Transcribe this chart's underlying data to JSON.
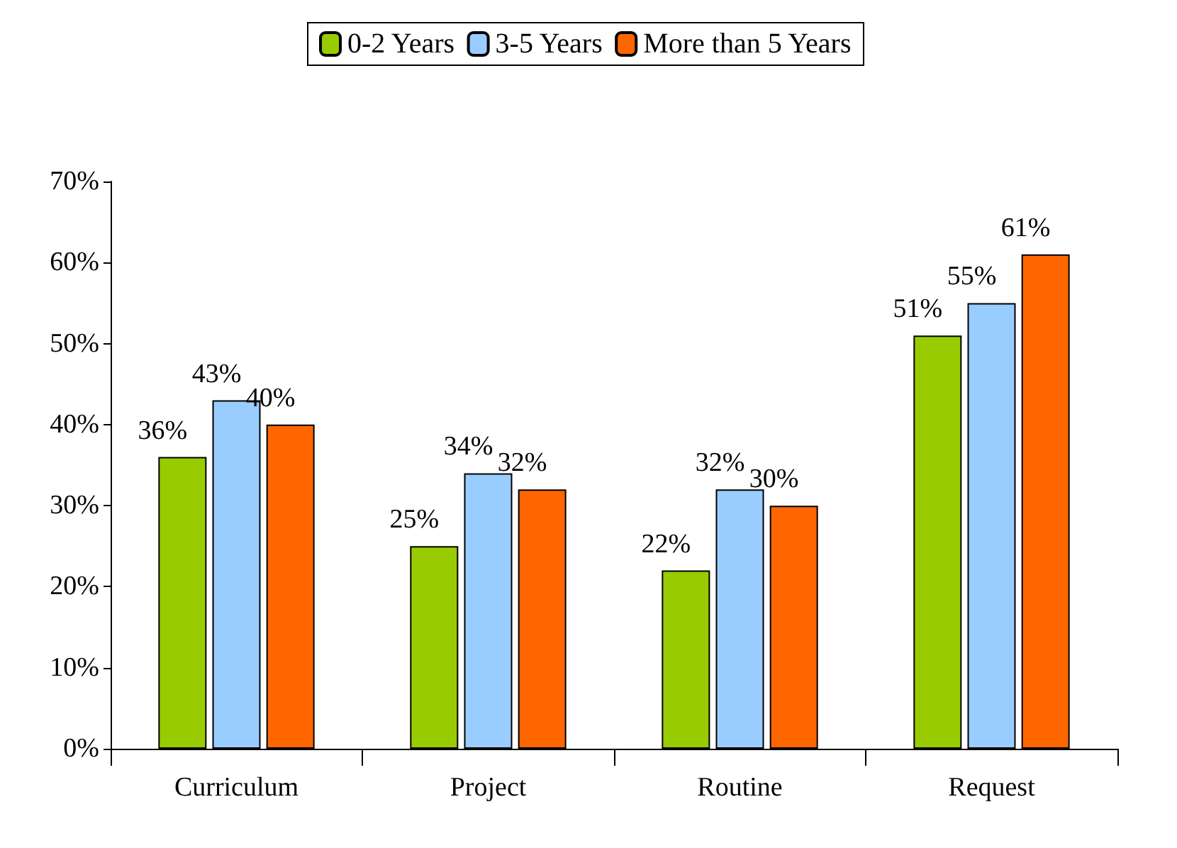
{
  "chart_data": {
    "type": "bar",
    "categories": [
      "Curriculum",
      "Project",
      "Routine",
      "Request"
    ],
    "series": [
      {
        "name": "0-2 Years",
        "color": "#99cc00",
        "values": [
          36,
          25,
          22,
          51
        ],
        "value_labels": [
          "36%",
          "25%",
          "22%",
          "51%"
        ]
      },
      {
        "name": "3-5 Years",
        "color": "#99ccff",
        "values": [
          43,
          34,
          32,
          55
        ],
        "value_labels": [
          "43%",
          "34%",
          "32%",
          "55%"
        ]
      },
      {
        "name": "More than 5 Years",
        "color": "#ff6600",
        "values": [
          40,
          32,
          30,
          61
        ],
        "value_labels": [
          "40%",
          "32%",
          "30%",
          "61%"
        ]
      }
    ],
    "ylim": [
      0,
      70
    ],
    "yticks": [
      {
        "value": 0,
        "label": "0%"
      },
      {
        "value": 10,
        "label": "10%"
      },
      {
        "value": 20,
        "label": "20%"
      },
      {
        "value": 30,
        "label": "30%"
      },
      {
        "value": 40,
        "label": "40%"
      },
      {
        "value": 50,
        "label": "50%"
      },
      {
        "value": 60,
        "label": "60%"
      },
      {
        "value": 70,
        "label": "70%"
      }
    ],
    "grid": false,
    "legend": "top"
  }
}
